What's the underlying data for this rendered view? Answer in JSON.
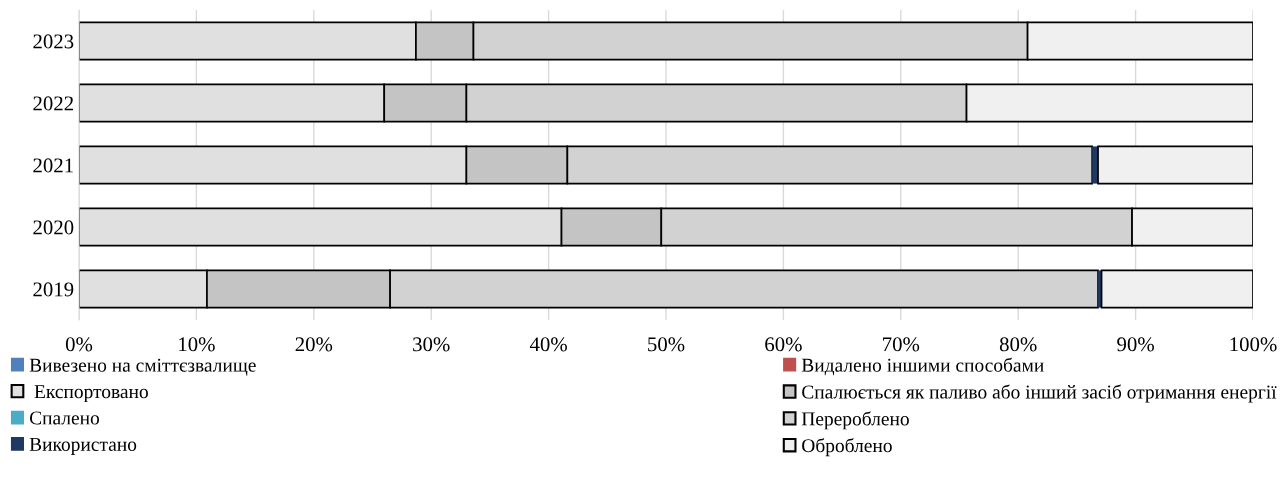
{
  "chart_data": {
    "type": "bar",
    "orientation": "horizontal",
    "stacked": true,
    "categories": [
      "2023",
      "2022",
      "2021",
      "2020",
      "2019"
    ],
    "series": [
      {
        "name": "Вивезено на сміттєзвалище",
        "color": "#4f81bd",
        "values": [
          0,
          0,
          0,
          0,
          0
        ]
      },
      {
        "name": "Видалено іншими способами",
        "color": "#c0504d",
        "values": [
          0,
          0,
          0,
          0,
          0
        ]
      },
      {
        "name": " Експортовано",
        "color": "#e0e0e0",
        "values": [
          28.7,
          26.0,
          33.0,
          41.1,
          10.9
        ]
      },
      {
        "name": "Спалюється як паливо або інший засіб отримання енергії",
        "color": "#c4c4c4",
        "values": [
          4.9,
          7.0,
          8.6,
          8.5,
          15.6
        ]
      },
      {
        "name": "Спалено",
        "color": "#4bacc6",
        "values": [
          0,
          0,
          0,
          0,
          0
        ]
      },
      {
        "name": "Перероблено",
        "color": "#d2d2d2",
        "values": [
          47.2,
          42.6,
          44.7,
          40.1,
          60.3
        ]
      },
      {
        "name": "Використано",
        "color": "#1f3864",
        "values": [
          0,
          0,
          0.5,
          0,
          0.3
        ]
      },
      {
        "name": "Оброблено",
        "color": "#f0f0f0",
        "values": [
          19.2,
          24.4,
          13.2,
          10.3,
          12.9
        ]
      }
    ],
    "xlim": [
      0,
      100
    ],
    "xticks": [
      {
        "value": 0,
        "label": "0%"
      },
      {
        "value": 10,
        "label": "10%"
      },
      {
        "value": 20,
        "label": "20%"
      },
      {
        "value": 30,
        "label": "30%"
      },
      {
        "value": 40,
        "label": "40%"
      },
      {
        "value": 50,
        "label": "50%"
      },
      {
        "value": 60,
        "label": "60%"
      },
      {
        "value": 70,
        "label": "70%"
      },
      {
        "value": 80,
        "label": "80%"
      },
      {
        "value": 90,
        "label": "90%"
      },
      {
        "value": 100,
        "label": "100%"
      }
    ],
    "grid": "x",
    "legend": "bottom"
  }
}
